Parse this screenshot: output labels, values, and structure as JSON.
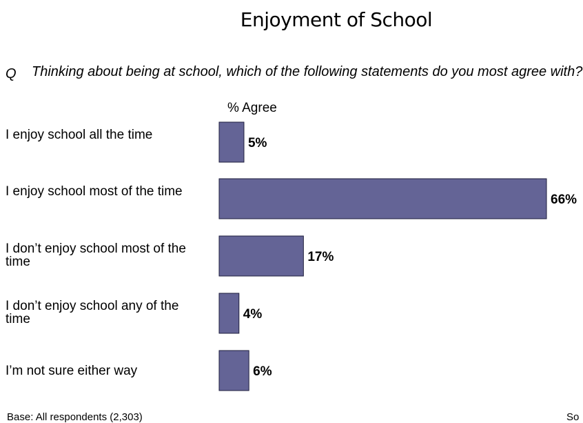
{
  "title": "Enjoyment of School",
  "question_marker": "Q",
  "question": "Thinking about being at school, which of the following statements do you most agree with?",
  "measure_label": "% Agree",
  "base_note": "Base: All respondents (2,303)",
  "source_note": "So",
  "colors": {
    "bar_fill": "#646496",
    "bar_stroke": "#1e1e3c"
  },
  "chart_data": {
    "type": "bar",
    "orientation": "horizontal",
    "categories": [
      "I enjoy school all the time",
      "I enjoy school most of the time",
      "I don’t enjoy school most of the time",
      "I don’t enjoy school any of the time",
      "I’m not sure either way"
    ],
    "values": [
      5,
      66,
      17,
      4,
      6
    ],
    "value_labels": [
      "5%",
      "66%",
      "17%",
      "4%",
      "6%"
    ],
    "xlim": [
      0,
      66
    ],
    "unit": "%",
    "grid": false,
    "legend": "none"
  }
}
